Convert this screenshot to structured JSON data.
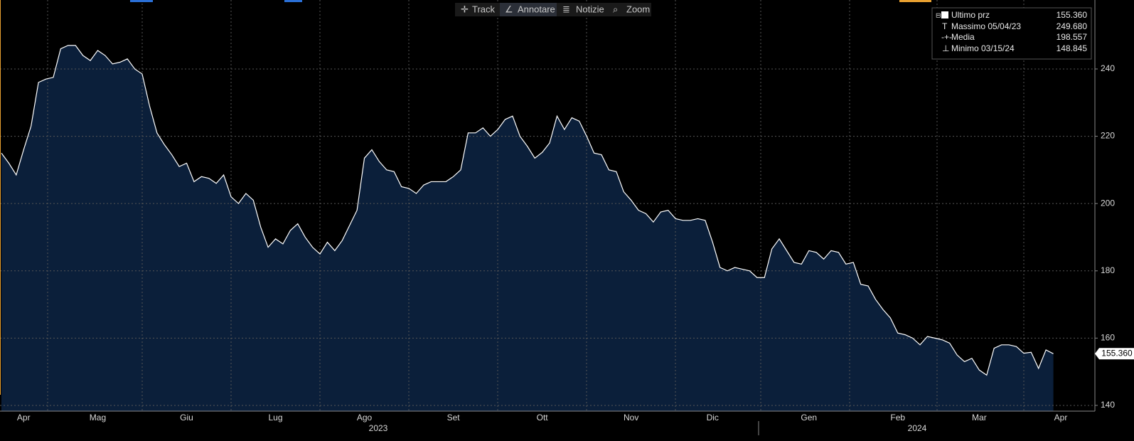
{
  "chart_data": {
    "type": "area",
    "toolbar": [
      "Track",
      "Annotare",
      "Notizie",
      "Zoom"
    ],
    "years": [
      "2023",
      "2024"
    ],
    "categories": [
      null,
      null,
      null,
      "Apr",
      null,
      null,
      null,
      null,
      null,
      null,
      null,
      null,
      null,
      "Mag",
      null,
      null,
      null,
      null,
      null,
      null,
      null,
      null,
      null,
      null,
      null,
      "Giu",
      null,
      null,
      null,
      null,
      null,
      null,
      null,
      null,
      null,
      null,
      null,
      "Lug",
      null,
      null,
      null,
      null,
      null,
      null,
      null,
      null,
      null,
      null,
      null,
      "Ago",
      null,
      null,
      null,
      null,
      null,
      null,
      null,
      null,
      null,
      null,
      null,
      "Set",
      null,
      null,
      null,
      null,
      null,
      null,
      null,
      null,
      null,
      null,
      null,
      "Ott",
      null,
      null,
      null,
      null,
      null,
      null,
      null,
      null,
      null,
      null,
      null,
      "Nov",
      null,
      null,
      null,
      null,
      null,
      null,
      null,
      null,
      null,
      null,
      "Dic",
      null,
      null,
      null,
      null,
      null,
      null,
      null,
      null,
      null,
      null,
      null,
      null,
      "Gen",
      null,
      null,
      null,
      null,
      null,
      null,
      null,
      null,
      null,
      null,
      null,
      "Feb",
      null,
      null,
      null,
      null,
      null,
      null,
      null,
      null,
      null,
      null,
      "Mar",
      null,
      null,
      null,
      null,
      null,
      null,
      null,
      null,
      null,
      null,
      "Apr"
    ],
    "series": [
      {
        "name": "Ultimo prz",
        "color": "#ffffff",
        "fill": "#0b1f3a",
        "values": [
          215,
          212,
          208.5,
          216,
          223,
          236,
          237,
          237.5,
          246,
          247,
          247,
          244,
          242.5,
          245.5,
          244,
          241.5,
          242,
          243,
          240,
          238.5,
          229,
          221,
          217.5,
          214.5,
          211,
          212,
          206.5,
          208,
          207.5,
          206,
          208.5,
          202,
          200,
          203,
          201,
          193,
          187,
          189.5,
          188,
          192,
          194,
          190,
          187,
          185,
          188.5,
          186,
          189,
          193.5,
          198,
          213.5,
          216,
          212.5,
          210,
          209.5,
          205,
          204.5,
          203,
          205.5,
          206.5,
          206.5,
          206.5,
          208,
          210,
          221,
          221,
          222.5,
          220,
          222,
          225,
          226,
          220,
          217,
          213.5,
          215.2,
          218,
          226,
          222,
          225.5,
          224.5,
          220,
          215,
          214.5,
          210,
          209.5,
          203.5,
          201,
          198,
          197,
          194.5,
          197.5,
          198,
          195.5,
          195,
          195,
          195.5,
          195,
          188.5,
          181,
          180,
          181,
          180.5,
          180,
          178,
          178,
          186.5,
          189.5,
          186,
          182.5,
          182,
          186,
          185.5,
          183.5,
          186,
          185.5,
          182,
          182.5,
          176,
          175.5,
          171.5,
          168.5,
          166,
          161.5,
          161,
          160,
          158,
          160.5,
          160,
          159.5,
          158.5,
          155,
          153,
          154,
          150.5,
          149,
          157,
          158,
          158,
          157.5,
          155.5,
          155.8,
          151,
          156.5,
          155.36,
          null
        ]
      }
    ],
    "last_value_label": "155.360",
    "stats": [
      {
        "name": "Ultimo prz",
        "value": "155.360"
      },
      {
        "name": "Massimo 05/04/23",
        "value": "249.680"
      },
      {
        "name": "Media",
        "value": "198.557"
      },
      {
        "name": "Minimo 03/15/24",
        "value": "148.845"
      }
    ],
    "ylim": [
      138.3,
      260.5
    ],
    "yticks": [
      140,
      160,
      180,
      200,
      220,
      240
    ],
    "grid": true
  }
}
